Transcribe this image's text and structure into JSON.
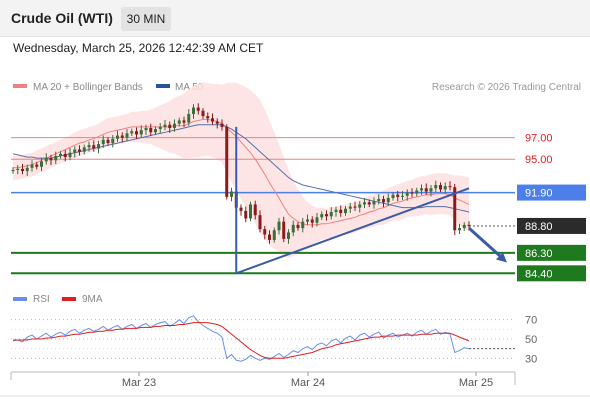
{
  "header": {
    "title": "Crude Oil (WTI)",
    "timeframe": "30 MIN"
  },
  "datetime": "Wednesday, March 25, 2026 12:42:39 AM CET",
  "credit": "Research © 2026 Trading Central",
  "colors": {
    "candle_up": "#3a6e3a",
    "candle_down": "#8b1a1a",
    "ma20": "#f08080",
    "bollinger_fill": "#fde0e0",
    "ma50": "#5570a8",
    "resistance": "#f08080",
    "pivot": "#4d7fe8",
    "support": "#1f7a1f",
    "trendline": "#3a5ca8",
    "rsi": "#6b8ee8",
    "rsi_ma": "#e02020"
  },
  "chart_data": [
    {
      "type": "candlestick",
      "legend": [
        {
          "name": "MA 20 + Bollinger Bands",
          "color": "#f08080"
        },
        {
          "name": "MA 50",
          "color": "#2a5298"
        }
      ],
      "ylim": [
        83.5,
        100.5
      ],
      "x_ticks": [
        "Mar 23",
        "Mar 24",
        "Mar 25"
      ],
      "levels": [
        {
          "value": 97.0,
          "label": "97.00",
          "kind": "resistance"
        },
        {
          "value": 95.0,
          "label": "95.00",
          "kind": "resistance"
        },
        {
          "value": 91.9,
          "label": "91.90",
          "kind": "pivot"
        },
        {
          "value": 88.8,
          "label": "88.80",
          "kind": "last"
        },
        {
          "value": 86.3,
          "label": "86.30",
          "kind": "support"
        },
        {
          "value": 84.4,
          "label": "84.40",
          "kind": "support"
        }
      ],
      "closes": [
        94.0,
        94.1,
        93.9,
        94.2,
        94.5,
        94.3,
        94.8,
        95.1,
        94.9,
        95.3,
        95.5,
        95.2,
        95.6,
        95.9,
        95.7,
        96.1,
        96.3,
        96.0,
        96.4,
        96.8,
        96.5,
        96.9,
        97.2,
        97.0,
        97.4,
        97.6,
        97.3,
        97.7,
        97.9,
        97.5,
        97.8,
        98.0,
        98.2,
        97.9,
        98.3,
        98.6,
        98.4,
        99.2,
        99.8,
        99.5,
        99.0,
        98.8,
        98.5,
        98.3,
        98.0,
        91.5,
        92.0,
        90.5,
        90.2,
        89.5,
        90.8,
        89.8,
        88.5,
        88.0,
        87.5,
        88.4,
        89.2,
        87.6,
        88.2,
        88.9,
        88.6,
        89.2,
        89.4,
        89.1,
        89.6,
        89.9,
        89.7,
        90.1,
        90.3,
        90.0,
        90.4,
        90.6,
        90.5,
        90.8,
        91.0,
        90.8,
        91.1,
        91.3,
        91.0,
        91.4,
        91.7,
        91.5,
        91.6,
        91.9,
        91.8,
        92.1,
        92.3,
        92.0,
        92.3,
        92.6,
        92.2,
        92.5,
        92.4,
        88.4,
        88.6,
        88.9,
        88.8
      ],
      "ma20": [
        94.2,
        94.2,
        94.3,
        94.4,
        94.5,
        94.7,
        94.9,
        95.1,
        95.3,
        95.5,
        95.7,
        95.9,
        96.1,
        96.3,
        96.5,
        96.6,
        96.8,
        96.9,
        97.1,
        97.3,
        97.5,
        97.6,
        97.7,
        97.8,
        97.9,
        98.0,
        98.0,
        98.0,
        98.0,
        98.0,
        98.0,
        98.0,
        98.0,
        98.0,
        98.1,
        98.1,
        98.1,
        98.3,
        98.5,
        98.6,
        98.7,
        98.7,
        98.6,
        98.5,
        98.3,
        97.9,
        97.5,
        97.1,
        96.6,
        96.1,
        95.6,
        95.0,
        94.3,
        93.6,
        92.8,
        92.1,
        91.4,
        90.6,
        89.9,
        89.5,
        89.2,
        89.0,
        88.9,
        88.9,
        88.9,
        89.0,
        89.0,
        89.1,
        89.2,
        89.3,
        89.4,
        89.5,
        89.6,
        89.8,
        89.9,
        90.1,
        90.2,
        90.4,
        90.5,
        90.7,
        90.9,
        91.0,
        91.1,
        91.3,
        91.4,
        91.5,
        91.6,
        91.7,
        91.7,
        91.8,
        91.8,
        91.8,
        91.7,
        91.4,
        91.2,
        91.0,
        90.8
      ],
      "ma50": [
        95.5,
        95.4,
        95.3,
        95.2,
        95.2,
        95.1,
        95.1,
        95.1,
        95.1,
        95.2,
        95.3,
        95.4,
        95.5,
        95.6,
        95.7,
        95.8,
        95.9,
        96.0,
        96.1,
        96.2,
        96.3,
        96.4,
        96.5,
        96.6,
        96.7,
        96.8,
        96.9,
        97.0,
        97.1,
        97.2,
        97.3,
        97.4,
        97.5,
        97.6,
        97.7,
        97.8,
        97.9,
        98.0,
        98.1,
        98.2,
        98.2,
        98.2,
        98.2,
        98.2,
        98.2,
        98.0,
        97.8,
        97.5,
        97.2,
        96.9,
        96.5,
        96.1,
        95.7,
        95.3,
        94.9,
        94.5,
        94.1,
        93.7,
        93.3,
        93.0,
        92.8,
        92.6,
        92.5,
        92.4,
        92.3,
        92.2,
        92.1,
        92.0,
        91.9,
        91.8,
        91.7,
        91.6,
        91.5,
        91.4,
        91.3,
        91.2,
        91.1,
        91.0,
        90.9,
        90.8,
        90.7,
        90.6,
        90.5,
        90.5,
        90.5,
        90.5,
        90.5,
        90.6,
        90.6,
        90.6,
        90.6,
        90.6,
        90.5,
        90.4,
        90.3,
        90.2,
        90.1
      ],
      "band_width": [
        1.1,
        1.1,
        1.1,
        1.1,
        1.1,
        1.1,
        1.1,
        1.1,
        1.1,
        1.1,
        1.1,
        1.1,
        1.1,
        1.2,
        1.2,
        1.2,
        1.2,
        1.2,
        1.2,
        1.3,
        1.3,
        1.3,
        1.3,
        1.3,
        1.3,
        1.4,
        1.4,
        1.5,
        1.5,
        1.6,
        1.8,
        2.0,
        2.2,
        2.4,
        2.6,
        2.8,
        3.0,
        3.2,
        3.3,
        3.4,
        3.4,
        3.4,
        3.4,
        3.5,
        3.6,
        4.2,
        4.6,
        5.0,
        5.3,
        5.6,
        5.8,
        6.0,
        6.2,
        6.0,
        5.8,
        5.4,
        5.0,
        4.6,
        4.1,
        3.5,
        3.0,
        2.5,
        2.1,
        1.8,
        1.6,
        1.5,
        1.4,
        1.4,
        1.4,
        1.4,
        1.4,
        1.4,
        1.4,
        1.4,
        1.4,
        1.5,
        1.5,
        1.5,
        1.6,
        1.6,
        1.6,
        1.7,
        1.7,
        1.7,
        1.7,
        1.8,
        1.8,
        1.8,
        1.9,
        1.9,
        1.9,
        1.9,
        1.9,
        2.1,
        2.3,
        2.4,
        2.5
      ],
      "trendlines": [
        {
          "from": [
            47,
            84.4
          ],
          "to": [
            96,
            92.3
          ]
        },
        {
          "from": [
            47,
            84.4
          ],
          "to": [
            47,
            98.0
          ]
        }
      ],
      "forecast_arrow": {
        "from": [
          96,
          88.6
        ],
        "to": [
          104,
          85.4
        ]
      }
    },
    {
      "type": "line",
      "legend": [
        {
          "name": "RSI",
          "color": "#6b8ee8"
        },
        {
          "name": "9MA",
          "color": "#e02020"
        }
      ],
      "ylim": [
        20,
        80
      ],
      "y_ticks": [
        30,
        50,
        70
      ],
      "series": [
        {
          "name": "RSI",
          "values": [
            48,
            49,
            47,
            52,
            54,
            50,
            53,
            56,
            52,
            55,
            57,
            54,
            58,
            60,
            56,
            59,
            61,
            58,
            60,
            63,
            59,
            62,
            64,
            60,
            63,
            65,
            61,
            64,
            66,
            62,
            65,
            67,
            68,
            63,
            66,
            70,
            66,
            72,
            74,
            68,
            64,
            61,
            58,
            56,
            52,
            30,
            34,
            28,
            27,
            29,
            33,
            30,
            28,
            30,
            29,
            32,
            35,
            31,
            34,
            38,
            36,
            40,
            42,
            39,
            44,
            46,
            43,
            48,
            50,
            46,
            51,
            53,
            49,
            54,
            56,
            52,
            55,
            57,
            51,
            54,
            56,
            52,
            54,
            56,
            53,
            57,
            59,
            55,
            58,
            60,
            55,
            57,
            55,
            36,
            38,
            41,
            40
          ]
        },
        {
          "name": "9MA",
          "values": [
            49,
            49,
            49,
            49,
            50,
            50,
            50,
            51,
            51,
            52,
            53,
            53,
            54,
            55,
            55,
            56,
            57,
            57,
            58,
            58,
            59,
            59,
            60,
            60,
            61,
            61,
            61,
            62,
            62,
            62,
            63,
            63,
            64,
            64,
            64,
            65,
            65,
            66,
            67,
            67,
            67,
            67,
            66,
            65,
            63,
            59,
            55,
            51,
            47,
            43,
            39,
            36,
            33,
            31,
            30,
            30,
            30,
            30,
            31,
            32,
            33,
            34,
            35,
            36,
            38,
            40,
            41,
            42,
            44,
            45,
            46,
            47,
            48,
            49,
            50,
            51,
            52,
            52,
            53,
            53,
            53,
            54,
            54,
            54,
            54,
            54,
            55,
            55,
            55,
            56,
            56,
            56,
            56,
            54,
            52,
            50,
            48
          ]
        }
      ]
    }
  ]
}
